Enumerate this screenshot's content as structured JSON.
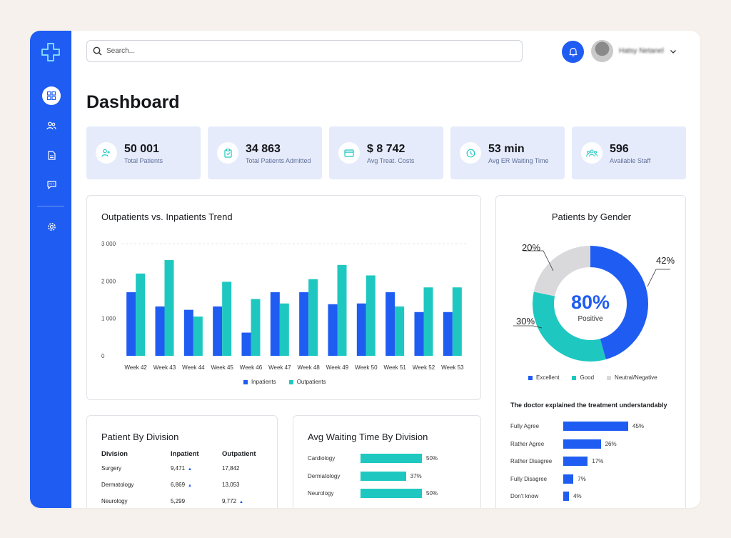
{
  "search": {
    "placeholder": "Search..."
  },
  "header": {
    "user_name": "Hatsy Netanel"
  },
  "page": {
    "title": "Dashboard"
  },
  "stats": [
    {
      "value": "50 001",
      "label": "Total Patients",
      "icon": "users-icon"
    },
    {
      "value": "34 863",
      "label": "Total Patients Admitted",
      "icon": "clipboard-icon"
    },
    {
      "value": "$ 8 742",
      "label": "Avg Treat. Costs",
      "icon": "card-icon"
    },
    {
      "value": "53 min",
      "label": "Avg ER Waiting Time",
      "icon": "clock-icon"
    },
    {
      "value": "596",
      "label": "Available Staff",
      "icon": "staff-icon"
    }
  ],
  "trend": {
    "title": "Outpatients vs. Inpatients Trend",
    "legend": [
      "Inpatients",
      "Outpatients"
    ]
  },
  "gender": {
    "title": "Patients by Gender",
    "center_value": "80%",
    "center_label": "Positive",
    "pct_excellent": "42%",
    "pct_good": "30%",
    "pct_neutral": "20%",
    "legend": [
      "Excellent",
      "Good",
      "Neutral/Negative"
    ]
  },
  "survey": {
    "question": "The doctor explained the treatment understandably",
    "rows": [
      {
        "label": "Fully Agree",
        "value": 45,
        "text": "45%"
      },
      {
        "label": "Rather Agree",
        "value": 26,
        "text": "26%"
      },
      {
        "label": "Rather Disagree",
        "value": 17,
        "text": "17%"
      },
      {
        "label": "Fully Disagree",
        "value": 7,
        "text": "7%"
      },
      {
        "label": "Don't know",
        "value": 4,
        "text": "4%"
      }
    ]
  },
  "division": {
    "title": "Patient By Division",
    "headers": [
      "Division",
      "Inpatient",
      "Outpatient"
    ],
    "rows": [
      {
        "name": "Surgery",
        "inpatient": "9,471",
        "outpatient": "17,842"
      },
      {
        "name": "Dermatology",
        "inpatient": "6,869",
        "outpatient": "13,053"
      },
      {
        "name": "Neurology",
        "inpatient": "5,299",
        "outpatient": "9,772"
      }
    ]
  },
  "waiting": {
    "title": "Avg Waiting Time By Division",
    "rows": [
      {
        "label": "Cardiology",
        "value": 50,
        "text": "50%"
      },
      {
        "label": "Dermatology",
        "value": 37,
        "text": "37%"
      },
      {
        "label": "Neurology",
        "value": 50,
        "text": "50%"
      }
    ]
  },
  "colors": {
    "primary": "#1f5cf2",
    "teal": "#1ec8c0",
    "neutral": "#d9d9dc",
    "stat_bg": "#e5ebfb"
  },
  "chart_data": [
    {
      "type": "bar",
      "title": "Outpatients vs. Inpatients Trend",
      "categories": [
        "Week 42",
        "Week 43",
        "Week 44",
        "Week 45",
        "Week 46",
        "Week 47",
        "Week 48",
        "Week 49",
        "Week 50",
        "Week 51",
        "Week 52",
        "Week 53"
      ],
      "series": [
        {
          "name": "Inpatients",
          "values": [
            1700,
            1320,
            1230,
            1320,
            620,
            1700,
            1700,
            1380,
            1400,
            1700,
            1170,
            1170
          ]
        },
        {
          "name": "Outpatients",
          "values": [
            2200,
            2560,
            1050,
            1980,
            1520,
            1400,
            2050,
            2430,
            2150,
            1320,
            1830,
            1830
          ]
        }
      ],
      "yticks": [
        "0",
        "1 000",
        "2 000",
        "3 000"
      ],
      "ylim": [
        0,
        3000
      ],
      "legend": "bottom"
    },
    {
      "type": "pie",
      "title": "Patients by Gender",
      "labels": [
        "Excellent",
        "Good",
        "Neutral/Negative"
      ],
      "values": [
        42,
        30,
        20
      ]
    }
  ]
}
